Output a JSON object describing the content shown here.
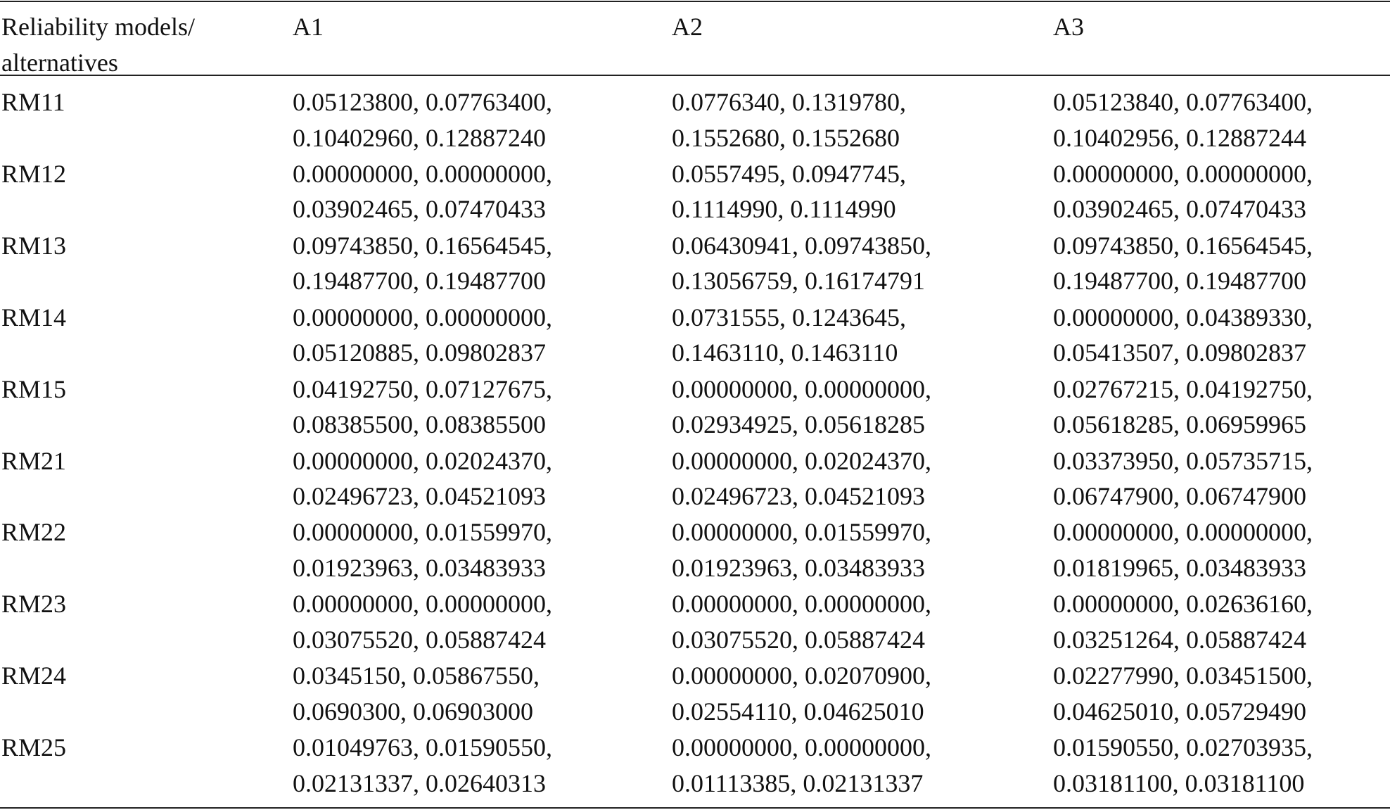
{
  "table": {
    "header": {
      "first": [
        "Reliability models/",
        "alternatives"
      ],
      "columns": [
        "A1",
        "A2",
        "A3"
      ]
    },
    "rows": [
      {
        "label": "RM11",
        "cells": [
          [
            "0.05123800, 0.07763400,",
            "0.10402960, 0.12887240"
          ],
          [
            "0.0776340, 0.1319780,",
            "0.1552680, 0.1552680"
          ],
          [
            "0.05123840, 0.07763400,",
            "0.10402956, 0.12887244"
          ]
        ]
      },
      {
        "label": "RM12",
        "cells": [
          [
            "0.00000000, 0.00000000,",
            "0.03902465, 0.07470433"
          ],
          [
            "0.0557495, 0.0947745,",
            "0.1114990, 0.1114990"
          ],
          [
            "0.00000000, 0.00000000,",
            "0.03902465, 0.07470433"
          ]
        ]
      },
      {
        "label": "RM13",
        "cells": [
          [
            "0.09743850, 0.16564545,",
            "0.19487700, 0.19487700"
          ],
          [
            "0.06430941, 0.09743850,",
            "0.13056759, 0.16174791"
          ],
          [
            "0.09743850, 0.16564545,",
            "0.19487700, 0.19487700"
          ]
        ]
      },
      {
        "label": "RM14",
        "cells": [
          [
            "0.00000000, 0.00000000,",
            "0.05120885, 0.09802837"
          ],
          [
            "0.0731555, 0.1243645,",
            "0.1463110, 0.1463110"
          ],
          [
            "0.00000000, 0.04389330,",
            "0.05413507, 0.09802837"
          ]
        ]
      },
      {
        "label": "RM15",
        "cells": [
          [
            "0.04192750, 0.07127675,",
            "0.08385500, 0.08385500"
          ],
          [
            "0.00000000, 0.00000000,",
            "0.02934925, 0.05618285"
          ],
          [
            "0.02767215, 0.04192750,",
            "0.05618285, 0.06959965"
          ]
        ]
      },
      {
        "label": "RM21",
        "cells": [
          [
            "0.00000000, 0.02024370,",
            "0.02496723, 0.04521093"
          ],
          [
            "0.00000000, 0.02024370,",
            "0.02496723, 0.04521093"
          ],
          [
            "0.03373950, 0.05735715,",
            "0.06747900, 0.06747900"
          ]
        ]
      },
      {
        "label": "RM22",
        "cells": [
          [
            "0.00000000, 0.01559970,",
            "0.01923963, 0.03483933"
          ],
          [
            "0.00000000, 0.01559970,",
            "0.01923963, 0.03483933"
          ],
          [
            "0.00000000, 0.00000000,",
            "0.01819965, 0.03483933"
          ]
        ]
      },
      {
        "label": "RM23",
        "cells": [
          [
            "0.00000000, 0.00000000,",
            "0.03075520, 0.05887424"
          ],
          [
            "0.00000000, 0.00000000,",
            "0.03075520, 0.05887424"
          ],
          [
            "0.00000000, 0.02636160,",
            "0.03251264, 0.05887424"
          ]
        ]
      },
      {
        "label": "RM24",
        "cells": [
          [
            "0.0345150, 0.05867550,",
            "0.0690300, 0.06903000"
          ],
          [
            "0.00000000, 0.02070900,",
            "0.02554110, 0.04625010"
          ],
          [
            "0.02277990, 0.03451500,",
            "0.04625010, 0.05729490"
          ]
        ]
      },
      {
        "label": "RM25",
        "cells": [
          [
            "0.01049763, 0.01590550,",
            "0.02131337, 0.02640313"
          ],
          [
            "0.00000000, 0.00000000,",
            "0.01113385, 0.02131337"
          ],
          [
            "0.01590550, 0.02703935,",
            "0.03181100, 0.03181100"
          ]
        ]
      }
    ]
  }
}
